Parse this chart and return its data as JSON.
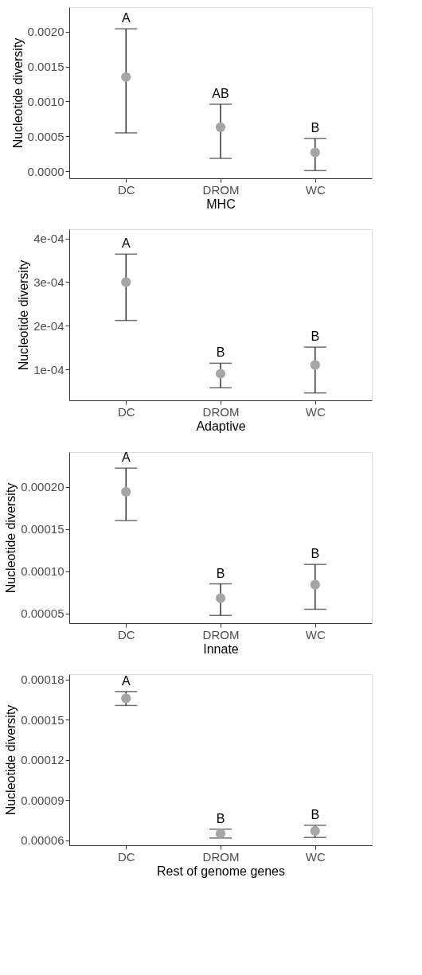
{
  "chart_data": [
    {
      "type": "scatter",
      "xlabel": "MHC",
      "ylabel": "Nucleotide diversity",
      "categories": [
        "DC",
        "DROM",
        "WC"
      ],
      "values": [
        0.00135,
        0.00063,
        0.00027
      ],
      "errors": [
        [
          0.00055,
          0.00204
        ],
        [
          0.000185,
          0.00096
        ],
        [
          1e-05,
          0.00047
        ]
      ],
      "color": "#a6a6a6",
      "marker": "circle",
      "grid": false,
      "ylim": [
        -0.0001,
        0.00235
      ],
      "yticks": [
        {
          "value": 0,
          "label": "0.0000"
        },
        {
          "value": 0.0005,
          "label": "0.0005"
        },
        {
          "value": 0.001,
          "label": "0.0010"
        },
        {
          "value": 0.0015,
          "label": "0.0015"
        },
        {
          "value": 0.002,
          "label": "0.0020"
        }
      ],
      "annotations": [
        {
          "text": "A",
          "x": "DC",
          "y": 0.00204
        },
        {
          "text": "AB",
          "x": "DROM",
          "y": 0.00096
        },
        {
          "text": "B",
          "x": "WC",
          "y": 0.00047
        }
      ]
    },
    {
      "type": "scatter",
      "xlabel": "Adaptive",
      "ylabel": "Nucleotide diversity",
      "categories": [
        "DC",
        "DROM",
        "WC"
      ],
      "values": [
        0.0003,
        9e-05,
        0.00011
      ],
      "errors": [
        [
          0.000212,
          0.000364
        ],
        [
          5.8e-05,
          0.000114
        ],
        [
          4.6e-05,
          0.000151
        ]
      ],
      "color": "#a6a6a6",
      "marker": "circle",
      "grid": false,
      "ylim": [
        2.9e-05,
        0.000421
      ],
      "yticks": [
        {
          "value": 0.0001,
          "label": "1e-04"
        },
        {
          "value": 0.0002,
          "label": "2e-04"
        },
        {
          "value": 0.0003,
          "label": "3e-04"
        },
        {
          "value": 0.0004,
          "label": "4e-04"
        }
      ],
      "annotations": [
        {
          "text": "A",
          "x": "DC",
          "y": 0.000364
        },
        {
          "text": "B",
          "x": "DROM",
          "y": 0.000114
        },
        {
          "text": "B",
          "x": "WC",
          "y": 0.000151
        }
      ]
    },
    {
      "type": "scatter",
      "xlabel": "Innate",
      "ylabel": "Nucleotide diversity",
      "categories": [
        "DC",
        "DROM",
        "WC"
      ],
      "values": [
        0.000194,
        6.8e-05,
        8.4e-05
      ],
      "errors": [
        [
          0.00016,
          0.000222
        ],
        [
          4.76e-05,
          8.5e-05
        ],
        [
          5.49e-05,
          0.000108
        ]
      ],
      "color": "#a6a6a6",
      "marker": "circle",
      "grid": false,
      "ylim": [
        3.84e-05,
        0.000241
      ],
      "yticks": [
        {
          "value": 5e-05,
          "label": "0.00005"
        },
        {
          "value": 0.0001,
          "label": "0.00010"
        },
        {
          "value": 0.00015,
          "label": "0.00015"
        },
        {
          "value": 0.0002,
          "label": "0.00020"
        }
      ],
      "annotations": [
        {
          "text": "A",
          "x": "DC",
          "y": 0.000222
        },
        {
          "text": "B",
          "x": "DROM",
          "y": 8.5e-05
        },
        {
          "text": "B",
          "x": "WC",
          "y": 0.000108
        }
      ]
    },
    {
      "type": "scatter",
      "xlabel": "Rest of genome genes",
      "ylabel": "Nucleotide diversity",
      "categories": [
        "DC",
        "DROM",
        "WC"
      ],
      "values": [
        0.000166,
        6.5e-05,
        6.7e-05
      ],
      "errors": [
        [
          0.0001606,
          0.000171
        ],
        [
          6.17e-05,
          6.83e-05
        ],
        [
          6.21e-05,
          7.12e-05
        ]
      ],
      "color": "#a6a6a6",
      "marker": "circle",
      "grid": false,
      "ylim": [
        5.63e-05,
        0.000184
      ],
      "yticks": [
        {
          "value": 6e-05,
          "label": "0.00006"
        },
        {
          "value": 9e-05,
          "label": "0.00009"
        },
        {
          "value": 0.00012,
          "label": "0.00012"
        },
        {
          "value": 0.00015,
          "label": "0.00015"
        },
        {
          "value": 0.00018,
          "label": "0.00018"
        }
      ],
      "annotations": [
        {
          "text": "A",
          "x": "DC",
          "y": 0.000171
        },
        {
          "text": "B",
          "x": "DROM",
          "y": 6.83e-05
        },
        {
          "text": "B",
          "x": "WC",
          "y": 7.12e-05
        }
      ]
    }
  ]
}
